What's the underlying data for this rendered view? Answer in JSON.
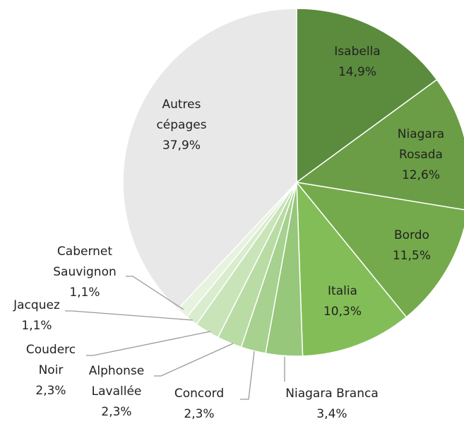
{
  "chart_data": {
    "type": "pie",
    "categories": [
      "Isabella",
      "Niagara Rosada",
      "Bordo",
      "Italia",
      "Niagara Branca",
      "Concord",
      "Alphonse Lavallée",
      "Couderc Noir",
      "Jacquez",
      "Cabernet Sauvignon",
      "Autres cépages"
    ],
    "values": [
      14.9,
      12.6,
      11.5,
      10.3,
      3.4,
      2.3,
      2.3,
      2.3,
      1.1,
      1.1,
      37.9
    ],
    "value_labels": [
      "14,9%",
      "12,6%",
      "11,5%",
      "10,3%",
      "3,4%",
      "2,3%",
      "2,3%",
      "2,3%",
      "1,1%",
      "1,1%",
      "37,9%"
    ],
    "colors": [
      "#5b8b3d",
      "#6a9d45",
      "#74aa4b",
      "#83bd57",
      "#96c77a",
      "#a7d18e",
      "#b9dba4",
      "#c9e4b8",
      "#d9eccd",
      "#e7f2df",
      "#e8e8e8"
    ]
  }
}
